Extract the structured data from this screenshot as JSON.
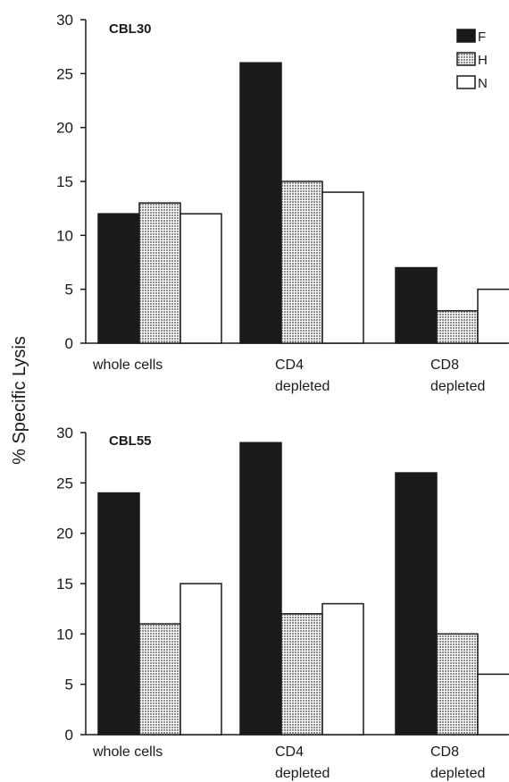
{
  "figure": {
    "ylabel": "% Specific Lysis"
  },
  "colors": {
    "F": "#1a1a1a",
    "H": "#b9b9b9",
    "N": "#ffffff",
    "axis": "#1a1a1a"
  },
  "chart_data": [
    {
      "type": "bar",
      "title": "CBL30",
      "categories": [
        [
          "whole cells"
        ],
        [
          "CD4",
          "depleted"
        ],
        [
          "CD8",
          "depleted"
        ]
      ],
      "series": [
        {
          "name": "F",
          "values": [
            12,
            26,
            7
          ]
        },
        {
          "name": "H",
          "values": [
            13,
            15,
            3
          ]
        },
        {
          "name": "N",
          "values": [
            12,
            14,
            5
          ]
        }
      ],
      "ylim": [
        0,
        30
      ],
      "yticks": [
        0,
        5,
        10,
        15,
        20,
        25,
        30
      ],
      "legend": "top-right",
      "grid": false
    },
    {
      "type": "bar",
      "title": "CBL55",
      "categories": [
        [
          "whole cells"
        ],
        [
          "CD4",
          "depleted"
        ],
        [
          "CD8",
          "depleted"
        ]
      ],
      "series": [
        {
          "name": "F",
          "values": [
            24,
            29,
            26
          ]
        },
        {
          "name": "H",
          "values": [
            11,
            12,
            10
          ]
        },
        {
          "name": "N",
          "values": [
            15,
            13,
            6
          ]
        }
      ],
      "ylim": [
        0,
        30
      ],
      "yticks": [
        0,
        5,
        10,
        15,
        20,
        25,
        30
      ],
      "legend": "none",
      "grid": false
    }
  ]
}
